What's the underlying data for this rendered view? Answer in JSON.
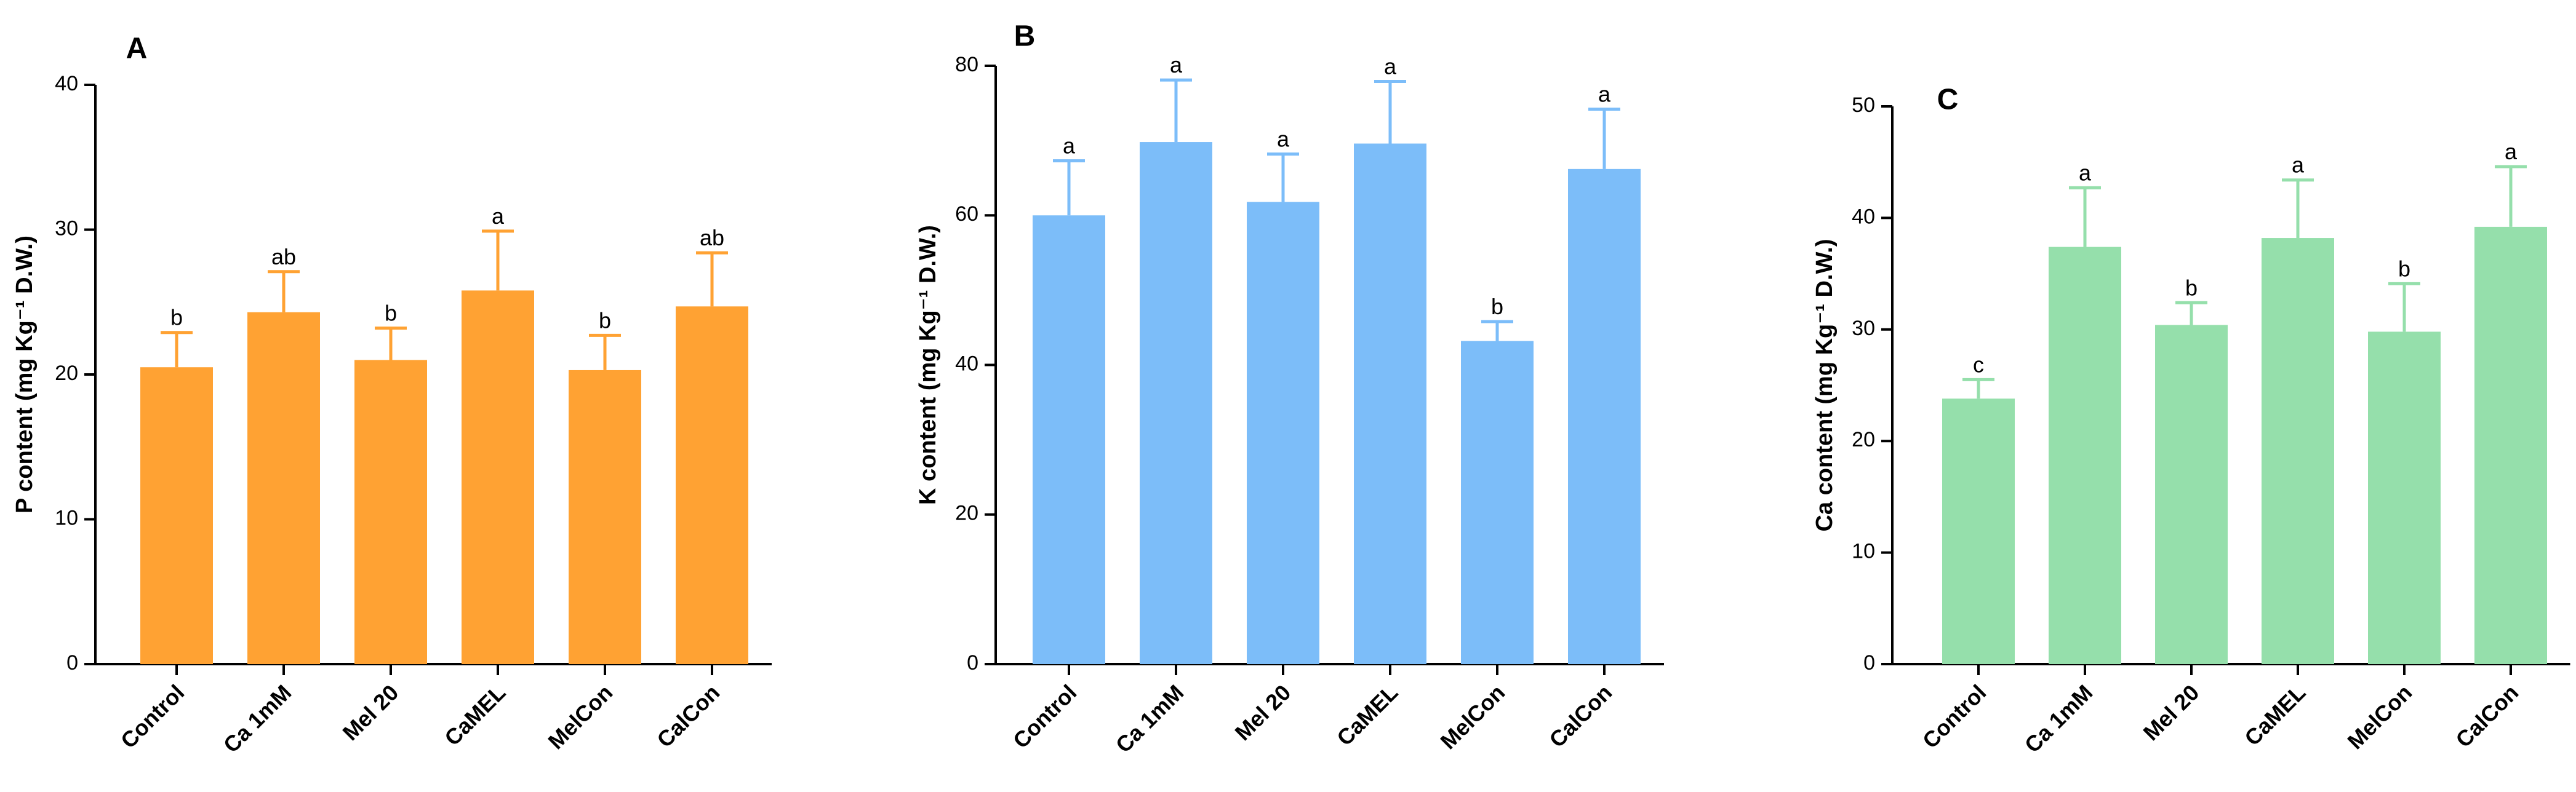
{
  "chart_data": [
    {
      "type": "bar",
      "panel": "A",
      "ylabel": "P content (mg Kg⁻¹ D.W.)",
      "categories": [
        "Control",
        "Ca 1mM",
        "Mel 20",
        "CaMEL",
        "MelCon",
        "CalCon"
      ],
      "values": [
        20.5,
        24.3,
        21.0,
        25.8,
        20.3,
        24.7
      ],
      "errors": [
        2.4,
        2.8,
        2.2,
        4.1,
        2.4,
        3.7
      ],
      "letters": [
        "b",
        "ab",
        "b",
        "a",
        "b",
        "ab"
      ],
      "ylim": [
        0,
        40
      ],
      "yticks": [
        0,
        10,
        20,
        30,
        40
      ],
      "color": "#FFA233"
    },
    {
      "type": "bar",
      "panel": "B",
      "ylabel": "K content (mg Kg⁻¹ D.W.)",
      "categories": [
        "Control",
        "Ca 1mM",
        "Mel 20",
        "CaMEL",
        "MelCon",
        "CalCon"
      ],
      "values": [
        60.0,
        69.8,
        61.8,
        69.6,
        43.2,
        66.2
      ],
      "errors": [
        7.3,
        8.3,
        6.4,
        8.3,
        2.6,
        8.0
      ],
      "letters": [
        "a",
        "a",
        "a",
        "a",
        "b",
        "a"
      ],
      "ylim": [
        0,
        80
      ],
      "yticks": [
        0,
        20,
        40,
        60,
        80
      ],
      "color": "#7CBDF9"
    },
    {
      "type": "bar",
      "panel": "C",
      "ylabel": "Ca content (mg Kg⁻¹ D.W.)",
      "categories": [
        "Control",
        "Ca 1mM",
        "Mel 20",
        "CaMEL",
        "MelCon",
        "CalCon"
      ],
      "values": [
        23.8,
        37.4,
        30.4,
        38.2,
        29.8,
        39.2
      ],
      "errors": [
        1.7,
        5.3,
        2.0,
        5.2,
        4.3,
        5.4
      ],
      "letters": [
        "c",
        "a",
        "b",
        "a",
        "b",
        "a"
      ],
      "ylim": [
        0,
        50
      ],
      "yticks": [
        0,
        10,
        20,
        30,
        40,
        50
      ],
      "color": "#95DFAB"
    }
  ]
}
